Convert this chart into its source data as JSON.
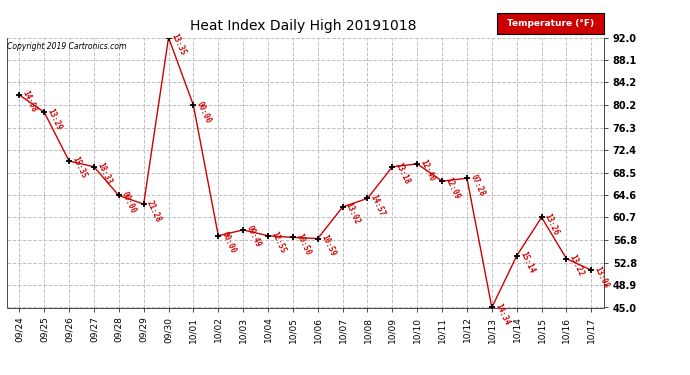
{
  "title": "Heat Index Daily High 20191018",
  "copyright": "Copyright 2019 Cartronics.com",
  "legend_label": "Temperature (°F)",
  "x_labels": [
    "09/24",
    "09/25",
    "09/26",
    "09/27",
    "09/28",
    "09/29",
    "09/30",
    "10/01",
    "10/02",
    "10/03",
    "10/04",
    "10/05",
    "10/06",
    "10/07",
    "10/08",
    "10/09",
    "10/10",
    "10/11",
    "10/12",
    "10/13",
    "10/14",
    "10/15",
    "10/16",
    "10/17"
  ],
  "y_values": [
    82.0,
    79.0,
    70.5,
    69.5,
    64.5,
    63.0,
    92.0,
    80.2,
    57.5,
    58.5,
    57.5,
    57.2,
    57.0,
    62.5,
    64.0,
    69.5,
    70.0,
    67.0,
    67.5,
    45.0,
    54.0,
    60.7,
    53.5,
    51.5
  ],
  "time_labels": [
    "14:08",
    "13:29",
    "15:35",
    "18:33",
    "00:00",
    "21:28",
    "13:35",
    "00:00",
    "00:00",
    "09:49",
    "12:55",
    "10:50",
    "10:59",
    "13:02",
    "14:57",
    "13:18",
    "12:40",
    "12:09",
    "07:28",
    "14:34",
    "15:14",
    "13:26",
    "13:22",
    "13:08"
  ],
  "ylim": [
    45.0,
    92.0
  ],
  "yticks": [
    45.0,
    48.9,
    52.8,
    56.8,
    60.7,
    64.6,
    68.5,
    72.4,
    76.3,
    80.2,
    84.2,
    88.1,
    92.0
  ],
  "line_color": "#cc0000",
  "marker_color": "#000000",
  "label_color": "#cc0000",
  "bg_color": "#ffffff",
  "grid_color": "#c0c0c0",
  "title_color": "#000000",
  "copyright_color": "#000000",
  "legend_bg": "#cc0000",
  "legend_text_color": "#ffffff"
}
